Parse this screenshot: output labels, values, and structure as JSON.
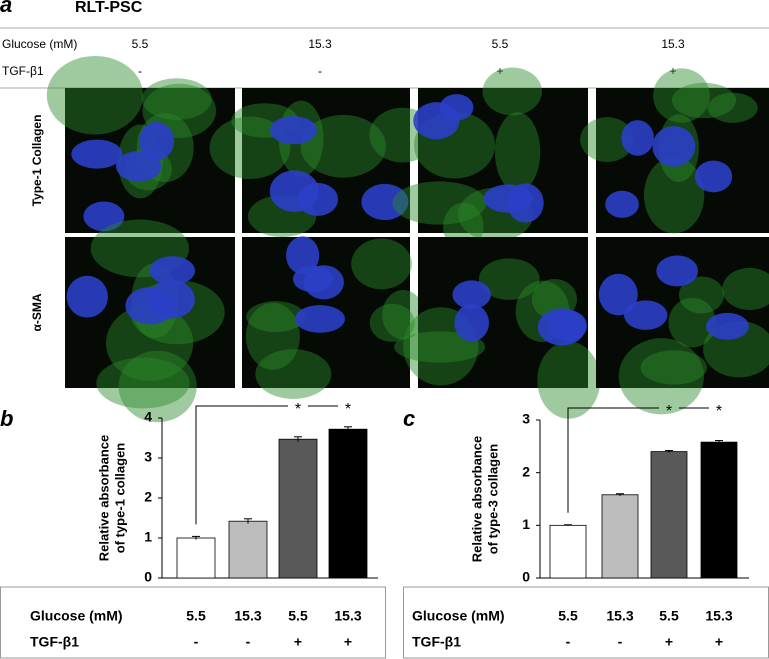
{
  "panel_a": {
    "label": "a",
    "title": "RLT-PSC",
    "rows": [
      {
        "label": "Glucose (mM)",
        "values": [
          "5.5",
          "15.3",
          "5.5",
          "15.3"
        ]
      },
      {
        "label": "TGF-β1",
        "values": [
          "-",
          "-",
          "+",
          "+"
        ]
      }
    ],
    "image_rows": [
      "Type-1 Collagen",
      "α-SMA"
    ]
  },
  "chart_data": [
    {
      "type": "bar",
      "panel": "b",
      "ylabel": [
        "Relative absorbance",
        "of type-1 collagen"
      ],
      "values": [
        1.0,
        1.42,
        3.47,
        3.72
      ],
      "errors": [
        0.04,
        0.06,
        0.06,
        0.06
      ],
      "colors": [
        "#ffffff",
        "#bdbdbd",
        "#595959",
        "#000000"
      ],
      "ylim": [
        0,
        4
      ],
      "yticks": [
        0,
        1,
        2,
        3,
        4
      ],
      "annotations": [
        "*",
        "*"
      ],
      "table": [
        {
          "label": "Glucose (mM)",
          "values": [
            "5.5",
            "15.3",
            "5.5",
            "15.3"
          ]
        },
        {
          "label": "TGF-β1",
          "values": [
            "-",
            "-",
            "+",
            "+"
          ]
        }
      ]
    },
    {
      "type": "bar",
      "panel": "c",
      "ylabel": [
        "Relative absorbance",
        "of type-3 collagen"
      ],
      "values": [
        1.0,
        1.58,
        2.4,
        2.58
      ],
      "errors": [
        0.01,
        0.02,
        0.02,
        0.03
      ],
      "colors": [
        "#ffffff",
        "#bdbdbd",
        "#595959",
        "#000000"
      ],
      "ylim": [
        0,
        3
      ],
      "yticks": [
        0,
        1,
        2,
        3
      ],
      "annotations": [
        "*",
        "*"
      ],
      "table": [
        {
          "label": "Glucose (mM)",
          "values": [
            "5.5",
            "15.3",
            "5.5",
            "15.3"
          ]
        },
        {
          "label": "TGF-β1",
          "values": [
            "-",
            "-",
            "+",
            "+"
          ]
        }
      ]
    }
  ]
}
